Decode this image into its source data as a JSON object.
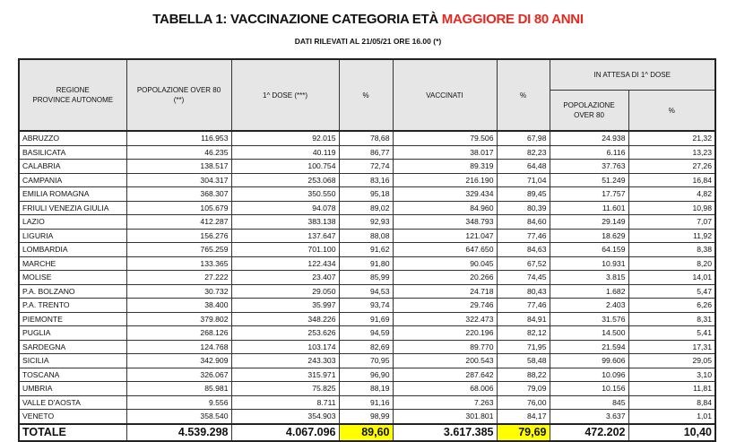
{
  "title": {
    "prefix": "TABELLA 1: VACCINAZIONE CATEGORIA ETÀ ",
    "highlight": "MAGGIORE DI 80 ANNI",
    "highlight_color": "#e8281e"
  },
  "subtitle": "DATI RILEVATI AL 21/05/21 ORE 16.00  (*)",
  "headers": {
    "regione": [
      "REGIONE",
      "PROVINCE AUTONOME"
    ],
    "popolazione": [
      "POPOLAZIONE OVER 80",
      "(**)"
    ],
    "prima_dose": "1^ DOSE (***)",
    "pct1": "%",
    "vaccinati": "VACCINATI",
    "pct2": "%",
    "in_attesa": "IN ATTESA DI 1^ DOSE",
    "attesa_pop": [
      "POPOLAZIONE",
      "OVER 80"
    ],
    "attesa_pct": "%"
  },
  "rows": [
    [
      "ABRUZZO",
      "116.953",
      "92.015",
      "78,68",
      "79.506",
      "67,98",
      "24.938",
      "21,32"
    ],
    [
      "BASILICATA",
      "46.235",
      "40.119",
      "86,77",
      "38.017",
      "82,23",
      "6.116",
      "13,23"
    ],
    [
      "CALABRIA",
      "138.517",
      "100.754",
      "72,74",
      "89.319",
      "64,48",
      "37.763",
      "27,26"
    ],
    [
      "CAMPANIA",
      "304.317",
      "253.068",
      "83,16",
      "216.190",
      "71,04",
      "51.249",
      "16,84"
    ],
    [
      "EMILIA ROMAGNA",
      "368.307",
      "350.550",
      "95,18",
      "329.434",
      "89,45",
      "17.757",
      "4,82"
    ],
    [
      "FRIULI VENEZIA GIULIA",
      "105.679",
      "94.078",
      "89,02",
      "84.960",
      "80,39",
      "11.601",
      "10,98"
    ],
    [
      "LAZIO",
      "412.287",
      "383.138",
      "92,93",
      "348.793",
      "84,60",
      "29.149",
      "7,07"
    ],
    [
      "LIGURIA",
      "156.276",
      "137.647",
      "88,08",
      "121.047",
      "77,46",
      "18.629",
      "11,92"
    ],
    [
      "LOMBARDIA",
      "765.259",
      "701.100",
      "91,62",
      "647.650",
      "84,63",
      "64.159",
      "8,38"
    ],
    [
      "MARCHE",
      "133.365",
      "122.434",
      "91,80",
      "90.045",
      "67,52",
      "10.931",
      "8,20"
    ],
    [
      "MOLISE",
      "27.222",
      "23.407",
      "85,99",
      "20.266",
      "74,45",
      "3.815",
      "14,01"
    ],
    [
      "P.A. BOLZANO",
      "30.732",
      "29.050",
      "94,53",
      "24.718",
      "80,43",
      "1.682",
      "5,47"
    ],
    [
      "P.A. TRENTO",
      "38.400",
      "35.997",
      "93,74",
      "29.746",
      "77,46",
      "2.403",
      "6,26"
    ],
    [
      "PIEMONTE",
      "379.802",
      "348.226",
      "91,69",
      "322.473",
      "84,91",
      "31.576",
      "8,31"
    ],
    [
      "PUGLIA",
      "268.126",
      "253.626",
      "94,59",
      "220.196",
      "82,12",
      "14.500",
      "5,41"
    ],
    [
      "SARDEGNA",
      "124.768",
      "103.174",
      "82,69",
      "89.770",
      "71,95",
      "21.594",
      "17,31"
    ],
    [
      "SICILIA",
      "342.909",
      "243.303",
      "70,95",
      "200.543",
      "58,48",
      "99.606",
      "29,05"
    ],
    [
      "TOSCANA",
      "326.067",
      "315.971",
      "96,90",
      "287.642",
      "88,22",
      "10.096",
      "3,10"
    ],
    [
      "UMBRIA",
      "85.981",
      "75.825",
      "88,19",
      "68.006",
      "79,09",
      "10.156",
      "11,81"
    ],
    [
      "VALLE D'AOSTA",
      "9.556",
      "8.711",
      "91,16",
      "7.263",
      "76,00",
      "845",
      "8,84"
    ],
    [
      "VENETO",
      "358.540",
      "354.903",
      "98,99",
      "301.801",
      "84,17",
      "3.637",
      "1,01"
    ]
  ],
  "total": [
    "TOTALE",
    "4.539.298",
    "4.067.096",
    "89,60",
    "3.617.385",
    "79,69",
    "472.202",
    "10,40"
  ],
  "highlight_color": "#ffff00"
}
